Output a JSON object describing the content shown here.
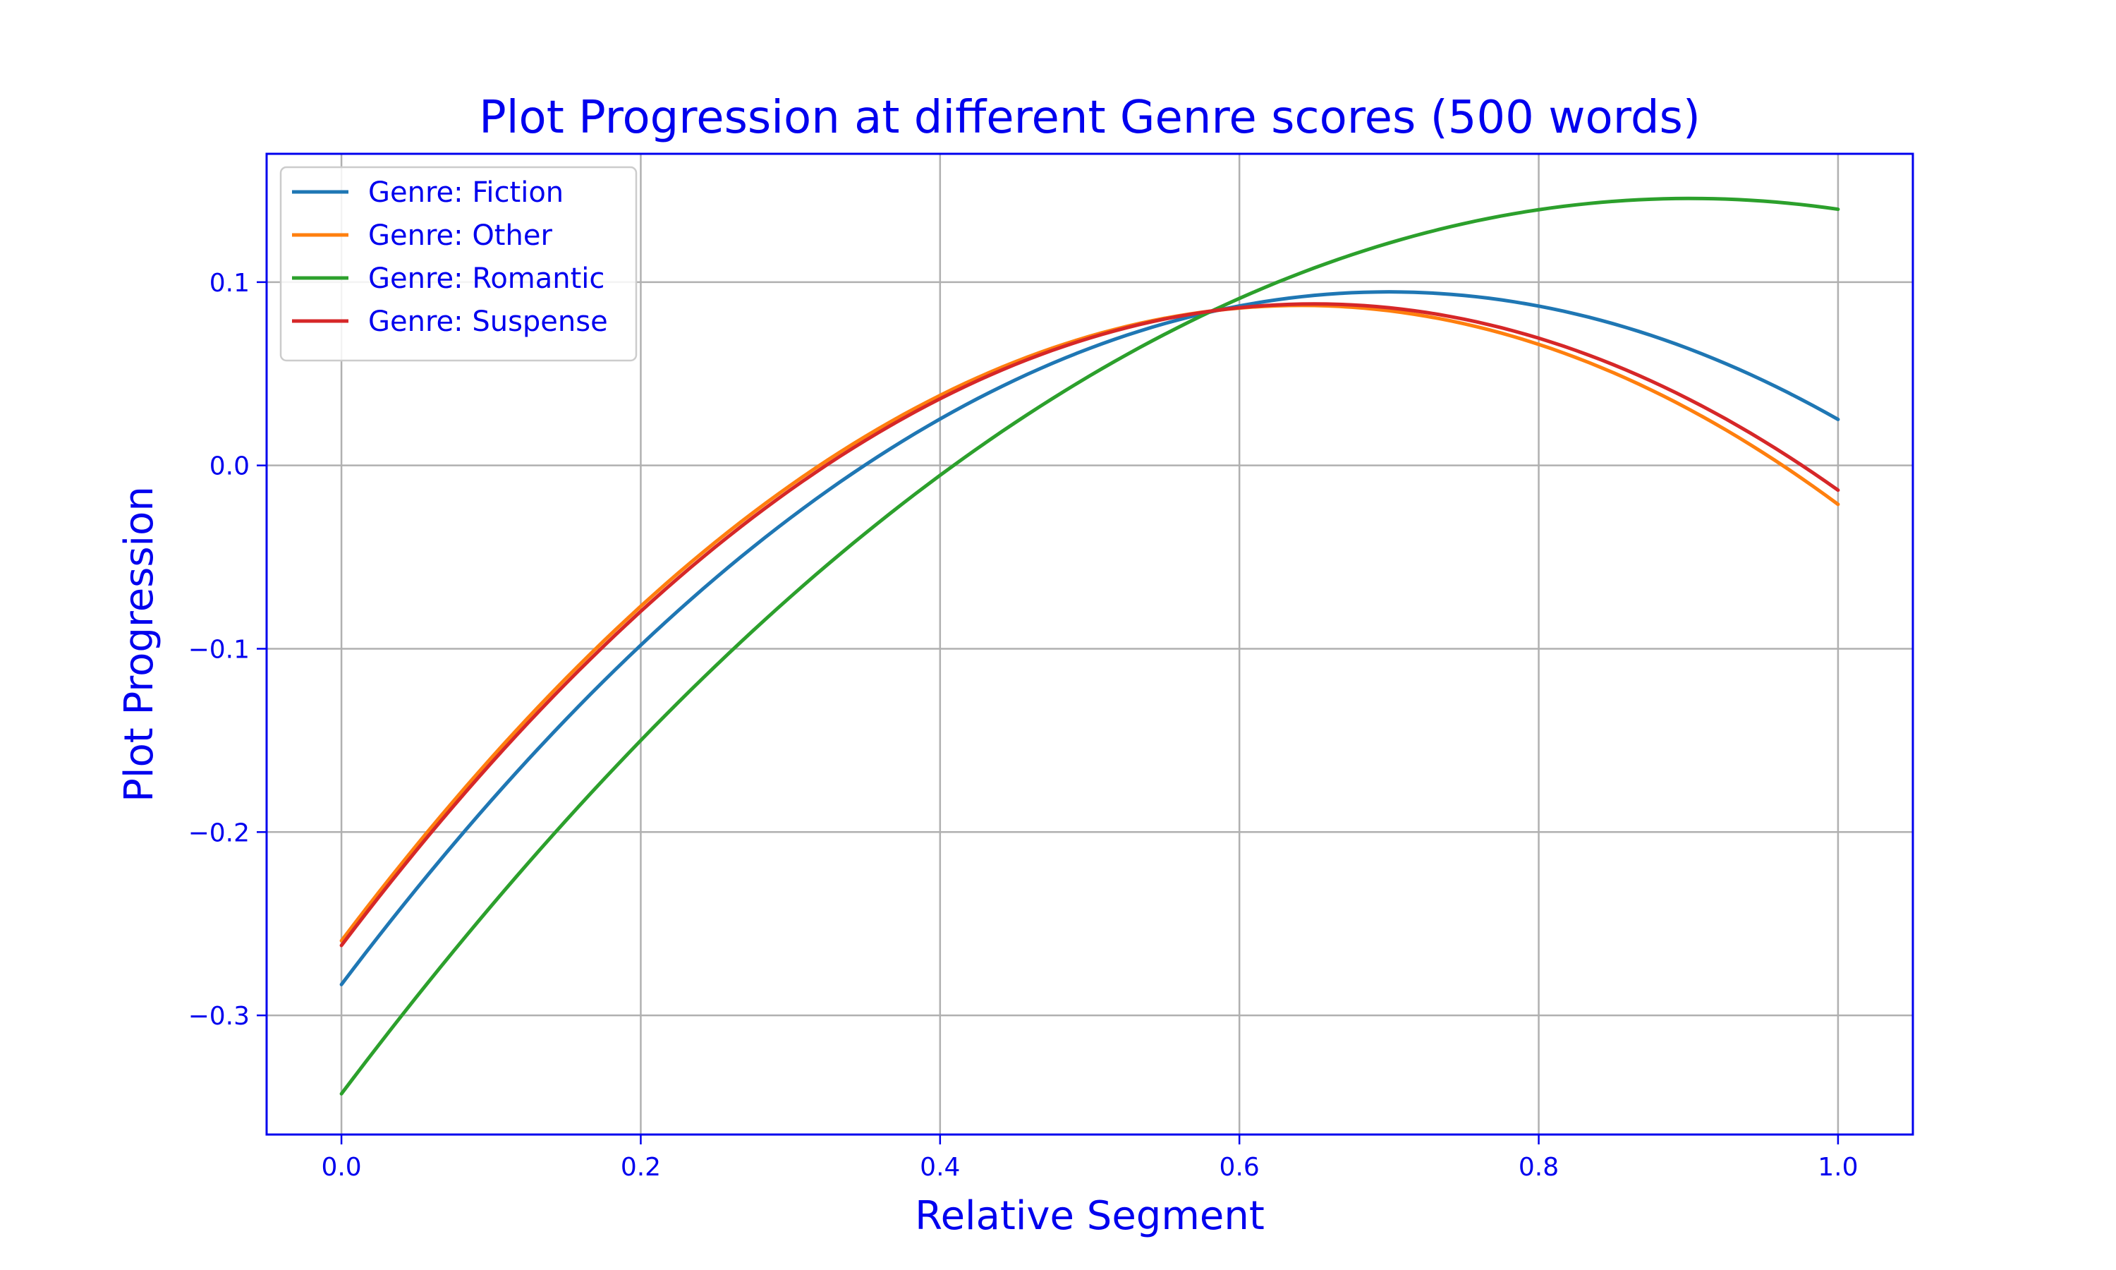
{
  "chart_data": {
    "type": "line",
    "title": "Plot Progression at different Genre scores (500 words)",
    "xlabel": "Relative Segment",
    "ylabel": "Plot Progression",
    "xlim": [
      -0.05,
      1.05
    ],
    "ylim": [
      -0.365,
      0.17
    ],
    "xticks": [
      0.0,
      0.2,
      0.4,
      0.6,
      0.8,
      1.0
    ],
    "xtick_labels": [
      "0.0",
      "0.2",
      "0.4",
      "0.6",
      "0.8",
      "1.0"
    ],
    "yticks": [
      -0.3,
      -0.2,
      -0.1,
      0.0,
      0.1
    ],
    "ytick_labels": [
      "−0.3",
      "−0.2",
      "−0.1",
      "0.0",
      "0.1"
    ],
    "grid": true,
    "legend_position": "top-left",
    "x": [
      0.0,
      0.1,
      0.2,
      0.3,
      0.4,
      0.5,
      0.6,
      0.7,
      0.8,
      0.9,
      1.0
    ],
    "series": [
      {
        "name": "Genre: Fiction",
        "color": "#1f77b4",
        "values": [
          -0.282,
          -0.182,
          -0.1,
          -0.031,
          0.025,
          0.066,
          0.088,
          0.094,
          0.088,
          0.064,
          0.024
        ]
      },
      {
        "name": "Genre: Other",
        "color": "#ff7f0e",
        "values": [
          -0.26,
          -0.158,
          -0.077,
          -0.012,
          0.038,
          0.071,
          0.086,
          0.084,
          0.066,
          0.032,
          -0.022
        ]
      },
      {
        "name": "Genre: Romantic",
        "color": "#2ca02c",
        "values": [
          -0.341,
          -0.242,
          -0.151,
          -0.072,
          -0.006,
          0.05,
          0.093,
          0.121,
          0.139,
          0.145,
          0.14
        ]
      },
      {
        "name": "Genre: Suspense",
        "color": "#d62728",
        "values": [
          -0.263,
          -0.161,
          -0.079,
          -0.014,
          0.036,
          0.07,
          0.086,
          0.086,
          0.069,
          0.036,
          -0.013
        ]
      }
    ]
  }
}
